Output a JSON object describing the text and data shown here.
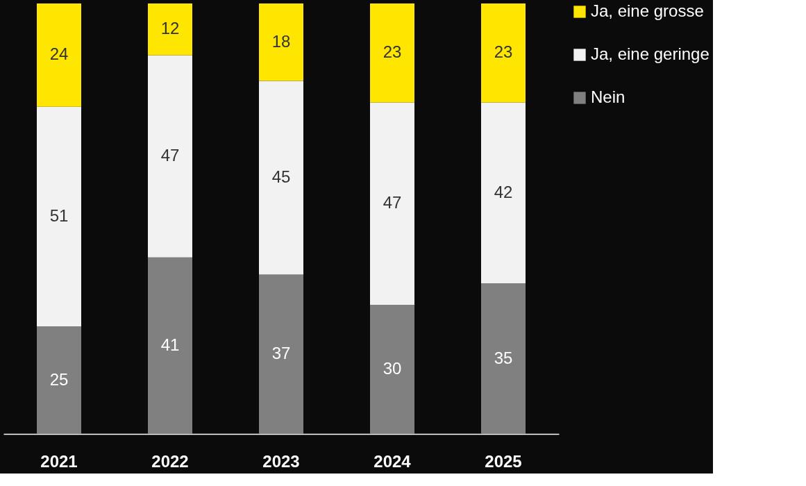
{
  "chart_data": {
    "type": "bar",
    "stacked": true,
    "data_labels": true,
    "grid": false,
    "legend": "right",
    "categories": [
      "2021",
      "2022",
      "2023",
      "2024",
      "2025"
    ],
    "series": [
      {
        "name": "Nein",
        "color": "#808080",
        "values": [
          25,
          41,
          37,
          30,
          35
        ]
      },
      {
        "name": "Ja, eine geringe",
        "color": "#f2f2f2",
        "values": [
          51,
          47,
          45,
          47,
          42
        ]
      },
      {
        "name": "Ja, eine grosse",
        "color": "#ffe600",
        "values": [
          24,
          12,
          18,
          23,
          23
        ]
      }
    ]
  }
}
